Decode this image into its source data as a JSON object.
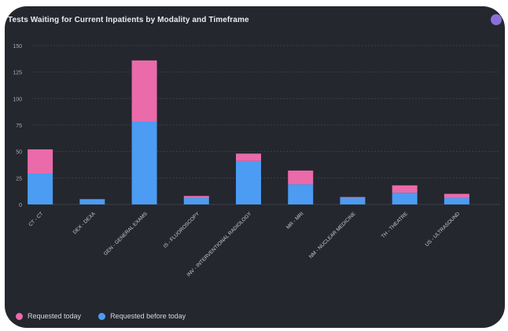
{
  "chart_data": {
    "type": "bar",
    "stacked": true,
    "title": "Tests Waiting for Current Inpatients by Modality and Timeframe",
    "categories": [
      "CT - CT",
      "DEX - DEXA",
      "GEN - GENERAL EXAMS",
      "IS - FLUOROSCOPY",
      "INV - INTERVENTIONAL RADIOLOGY",
      "MR - MRI",
      "NM - NUCLEAR MEDICINE",
      "TH - THEATRE",
      "US - ULTRASOUND"
    ],
    "series": [
      {
        "name": "Requested before today",
        "color": "#4b9cf2",
        "values": [
          29,
          5,
          78,
          6,
          41,
          19,
          6,
          11,
          6
        ]
      },
      {
        "name": "Requested today",
        "color": "#ea6aaa",
        "values": [
          23,
          0,
          58,
          2,
          7,
          13,
          1,
          7,
          4
        ]
      }
    ],
    "ylim": [
      0,
      150
    ],
    "yticks": [
      0,
      25,
      50,
      75,
      100,
      125,
      150
    ],
    "grid": true,
    "legend": "bottom-left"
  },
  "legend": {
    "today": "Requested today",
    "before": "Requested before today",
    "today_color": "#ea6aaa",
    "before_color": "#4b9cf2"
  },
  "window": {
    "corner_icon": "menu-circle-icon"
  }
}
